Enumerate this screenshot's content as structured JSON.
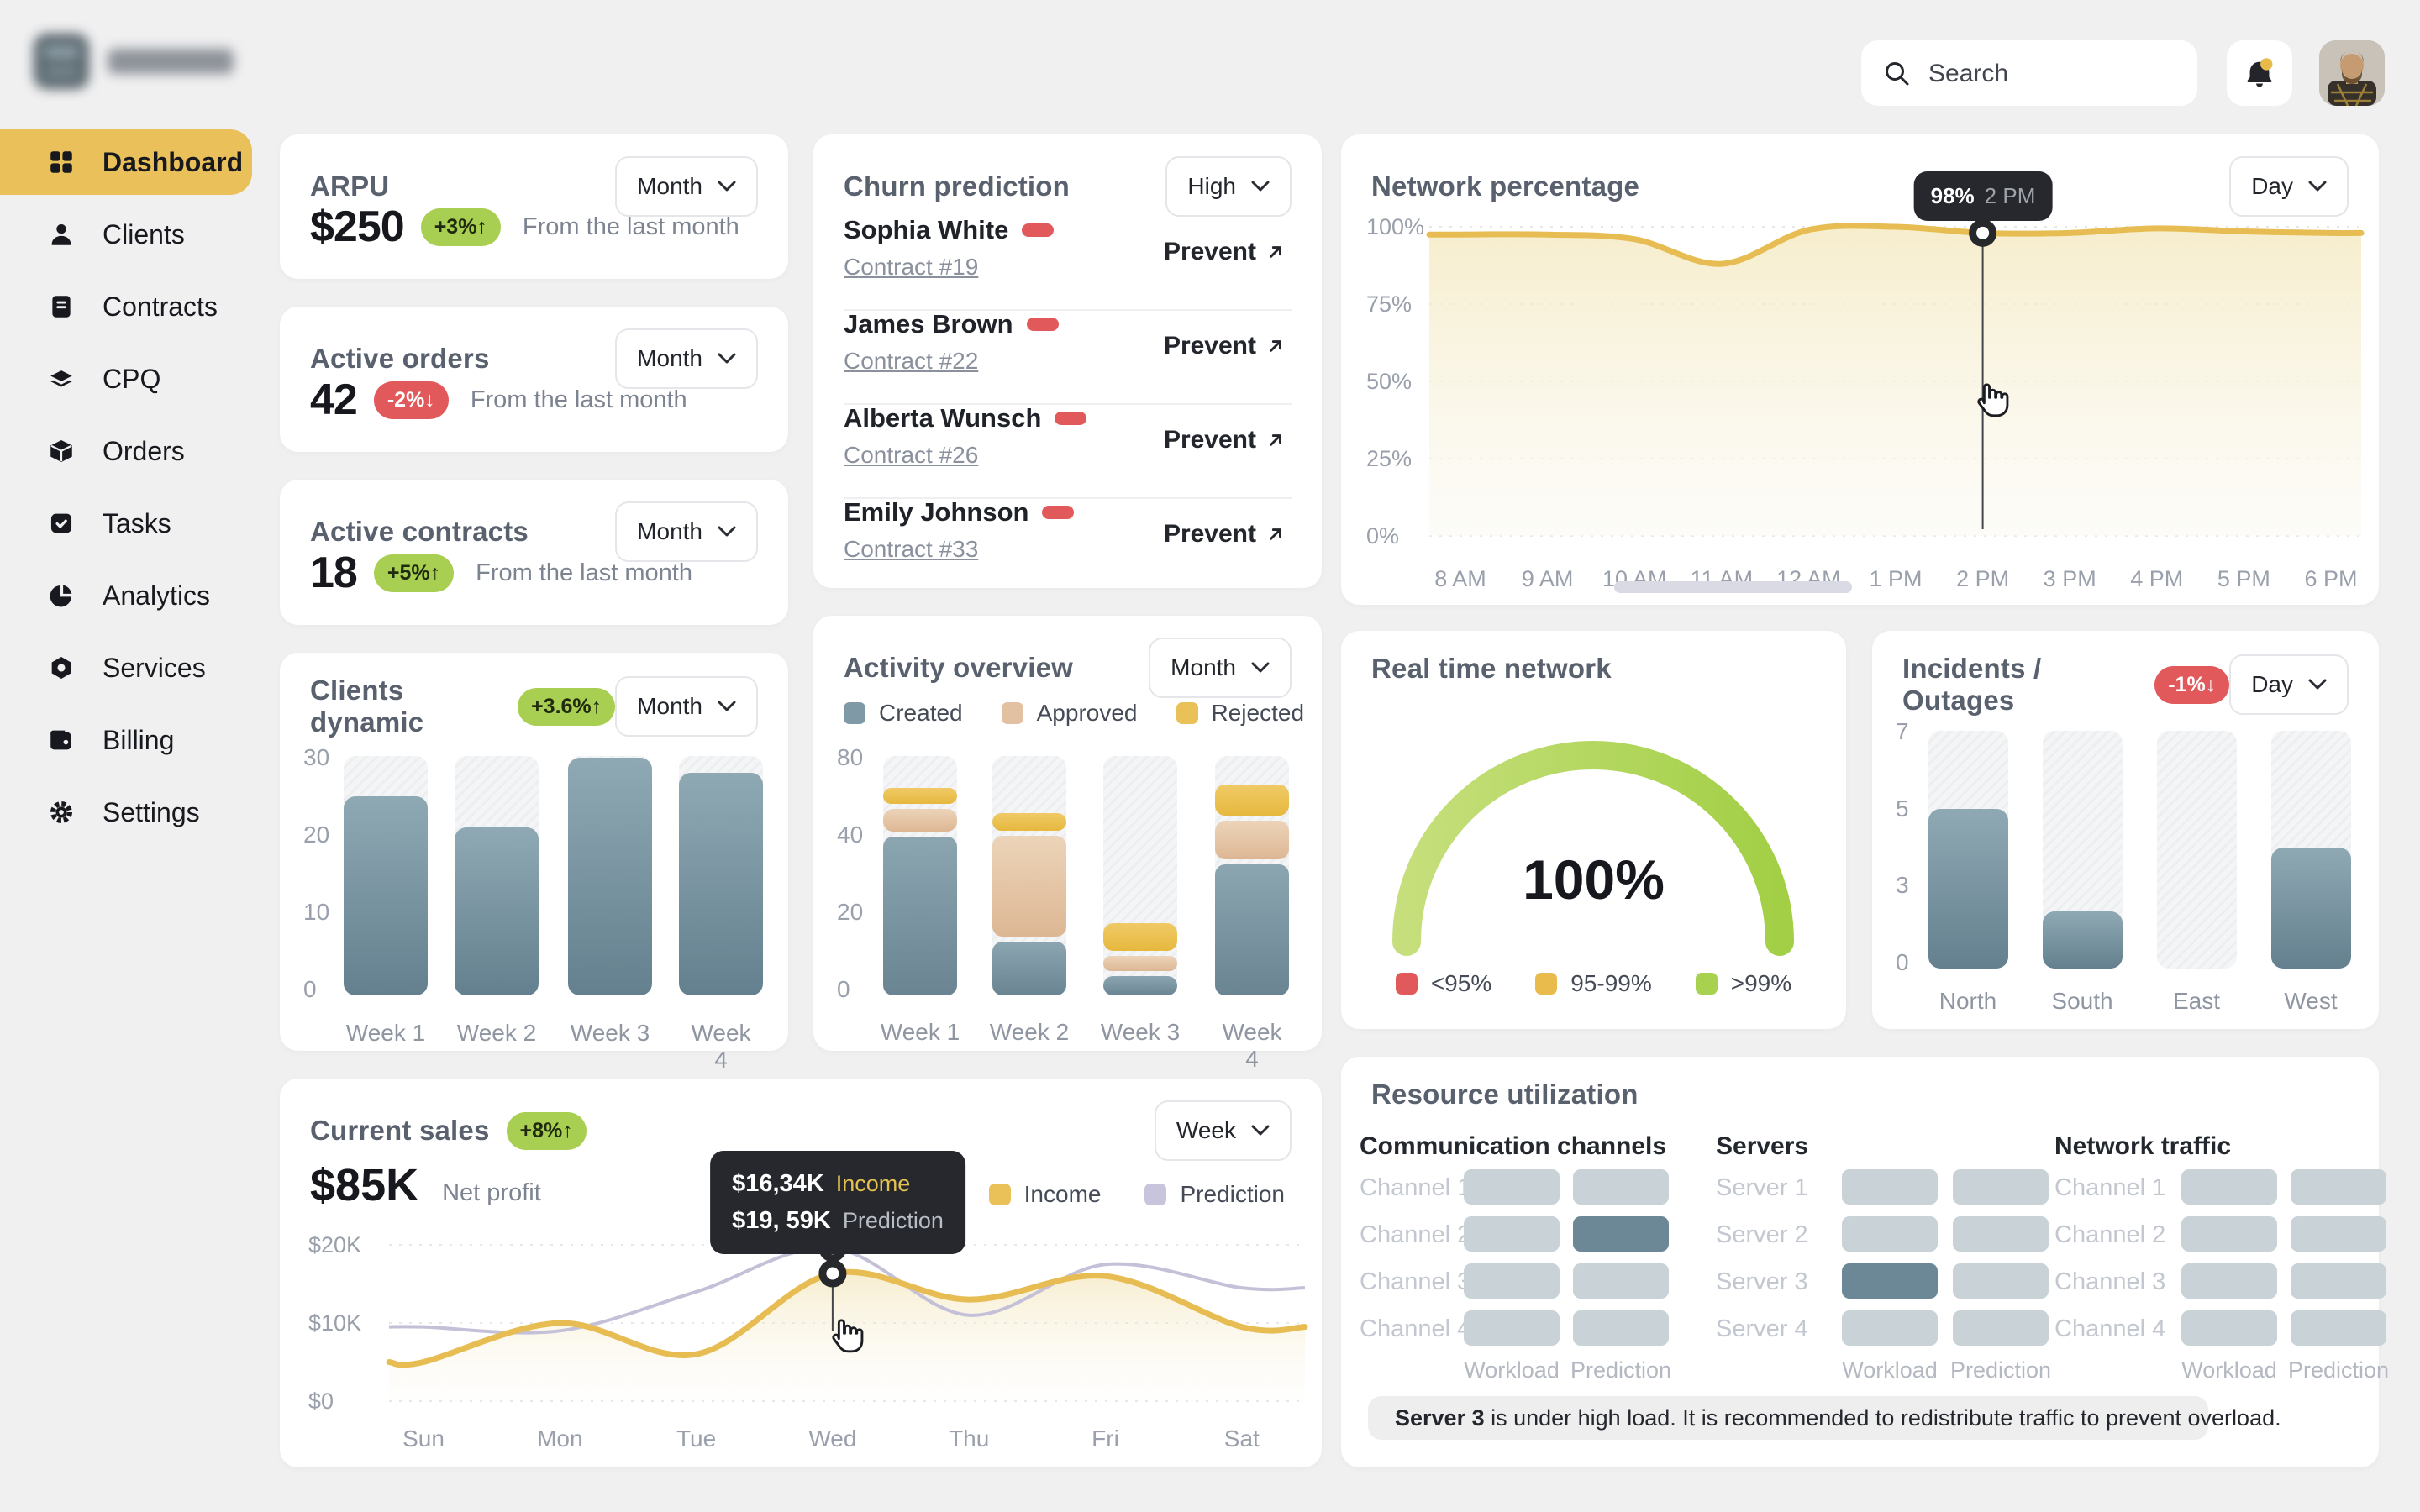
{
  "topbar": {
    "search_placeholder": "Search"
  },
  "sidebar": {
    "items": [
      {
        "label": "Dashboard",
        "icon": "dashboard-icon",
        "active": true
      },
      {
        "label": "Clients",
        "icon": "clients-icon",
        "active": false
      },
      {
        "label": "Contracts",
        "icon": "contracts-icon",
        "active": false
      },
      {
        "label": "CPQ",
        "icon": "cpq-icon",
        "active": false
      },
      {
        "label": "Orders",
        "icon": "orders-icon",
        "active": false
      },
      {
        "label": "Tasks",
        "icon": "tasks-icon",
        "active": false
      },
      {
        "label": "Analytics",
        "icon": "analytics-icon",
        "active": false
      },
      {
        "label": "Services",
        "icon": "services-icon",
        "active": false
      },
      {
        "label": "Billing",
        "icon": "billing-icon",
        "active": false
      },
      {
        "label": "Settings",
        "icon": "settings-icon",
        "active": false
      }
    ]
  },
  "cards": {
    "arpu": {
      "title": "ARPU",
      "period": "Month",
      "value": "$250",
      "badge": "+3%↑",
      "badge_type": "green",
      "note": "From the last month"
    },
    "active_orders": {
      "title": "Active orders",
      "period": "Month",
      "value": "42",
      "badge": "-2%↓",
      "badge_type": "red",
      "note": "From the last month"
    },
    "active_contracts": {
      "title": "Active contracts",
      "period": "Month",
      "value": "18",
      "badge": "+5%↑",
      "badge_type": "green",
      "note": "From the last month"
    },
    "clients_dynamic": {
      "title": "Clients dynamic",
      "badge": "+3.6%↑",
      "badge_type": "green",
      "period": "Month"
    },
    "churn": {
      "title": "Churn prediction",
      "filter": "High",
      "action_label": "Prevent",
      "rows": [
        {
          "name": "Sophia White",
          "contract": "Contract #19"
        },
        {
          "name": "James Brown",
          "contract": "Contract #22"
        },
        {
          "name": "Alberta Wunsch",
          "contract": "Contract #26"
        },
        {
          "name": "Emily Johnson",
          "contract": "Contract #33"
        }
      ]
    },
    "activity": {
      "title": "Activity overview",
      "period": "Month"
    },
    "network": {
      "title": "Network percentage",
      "period": "Day",
      "tooltip": {
        "value": "98%",
        "time": "2 PM"
      }
    },
    "current_sales": {
      "title": "Current sales",
      "badge": "+8%↑",
      "badge_type": "green",
      "period": "Week",
      "value": "$85K",
      "value_label": "Net profit",
      "tooltip": {
        "rows": [
          {
            "value": "$16,34K",
            "label": "Income"
          },
          {
            "value": "$19, 59K",
            "label": "Prediction"
          }
        ]
      }
    },
    "realtime": {
      "title": "Real time network",
      "value": "100%",
      "legend": [
        {
          "label": "<95%",
          "color": "#e2595b"
        },
        {
          "label": "95-99%",
          "color": "#e9bb4c"
        },
        {
          "label": ">99%",
          "color": "#a8d14f"
        }
      ]
    },
    "incidents": {
      "title": "Incidents / Outages",
      "badge": "-1%↓",
      "badge_type": "red",
      "period": "Day"
    },
    "resource": {
      "title": "Resource utilization",
      "columns": [
        "Workload",
        "Prediction"
      ],
      "groups": [
        {
          "title": "Communication channels",
          "rows": [
            {
              "label": "Channel 1",
              "workload": "normal",
              "prediction": "normal"
            },
            {
              "label": "Channel 2",
              "workload": "normal",
              "prediction": "high"
            },
            {
              "label": "Channel 3",
              "workload": "normal",
              "prediction": "normal"
            },
            {
              "label": "Channel 4",
              "workload": "normal",
              "prediction": "normal"
            }
          ]
        },
        {
          "title": "Servers",
          "rows": [
            {
              "label": "Server 1",
              "workload": "normal",
              "prediction": "normal"
            },
            {
              "label": "Server 2",
              "workload": "normal",
              "prediction": "normal"
            },
            {
              "label": "Server 3",
              "workload": "high",
              "prediction": "normal"
            },
            {
              "label": "Server 4",
              "workload": "normal",
              "prediction": "normal"
            }
          ]
        },
        {
          "title": "Network traffic",
          "rows": [
            {
              "label": "Channel 1",
              "workload": "normal",
              "prediction": "normal"
            },
            {
              "label": "Channel 2",
              "workload": "normal",
              "prediction": "normal"
            },
            {
              "label": "Channel 3",
              "workload": "normal",
              "prediction": "normal"
            },
            {
              "label": "Channel 4",
              "workload": "normal",
              "prediction": "normal"
            }
          ]
        }
      ],
      "alert": {
        "bold": "Server 3",
        "text": " is under high load. It is recommended to redistribute traffic to prevent overload."
      }
    }
  },
  "chart_data": {
    "clients_dynamic": {
      "type": "bar",
      "categories": [
        "Week 1",
        "Week 2",
        "Week 3",
        "Week 4"
      ],
      "values": [
        25,
        21,
        30,
        28
      ],
      "yticks": [
        30,
        20,
        10,
        0
      ],
      "ylim": [
        0,
        30
      ]
    },
    "activity_overview": {
      "type": "bar",
      "stacked": true,
      "categories": [
        "Week 1",
        "Week 2",
        "Week 3",
        "Week 4"
      ],
      "series": [
        {
          "name": "Created",
          "color": "#7f99a6",
          "values": [
            42,
            14,
            5,
            34
          ]
        },
        {
          "name": "Approved",
          "color": "#e2c1a2",
          "values": [
            12,
            26,
            4,
            14
          ]
        },
        {
          "name": "Rejected",
          "color": "#eac158",
          "values": [
            8,
            9,
            7,
            16
          ]
        }
      ],
      "yticks": [
        80,
        40,
        20,
        0
      ],
      "ylim": [
        0,
        80
      ]
    },
    "network_percentage": {
      "type": "area",
      "x": [
        "8 AM",
        "9 AM",
        "10 AM",
        "11 AM",
        "12 AM",
        "1 PM",
        "2 PM",
        "3 PM",
        "4 PM",
        "5 PM",
        "6 PM"
      ],
      "values": [
        97.5,
        97.5,
        96,
        88,
        99,
        100,
        98,
        98,
        99.5,
        98.5,
        98
      ],
      "yticks": [
        "100%",
        "75%",
        "50%",
        "25%",
        "0%"
      ],
      "ylim": [
        0,
        100
      ],
      "highlight": {
        "x": "2 PM",
        "value": 98
      }
    },
    "current_sales": {
      "type": "line",
      "x": [
        "Sun",
        "Mon",
        "Tue",
        "Wed",
        "Thu",
        "Fri",
        "Sat"
      ],
      "series": [
        {
          "name": "Income",
          "color": "#eac158",
          "values": [
            5,
            10,
            6,
            16.34,
            13,
            16,
            9.5
          ]
        },
        {
          "name": "Prediction",
          "color": "#c7c4dc",
          "values": [
            9.5,
            9,
            14,
            19.59,
            11,
            17.5,
            14.5
          ]
        }
      ],
      "yticks": [
        "$20K",
        "$10K",
        "$0"
      ],
      "ylim_k": [
        0,
        20
      ],
      "highlight": {
        "x": "Wed",
        "income": 16.34,
        "prediction": 19.59
      }
    },
    "realtime_network": {
      "type": "gauge",
      "value": 100,
      "unit": "%"
    },
    "incidents_outages": {
      "type": "bar",
      "categories": [
        "North",
        "South",
        "East",
        "West"
      ],
      "values": [
        5,
        2,
        0,
        4
      ],
      "yticks": [
        7,
        5,
        3,
        0
      ],
      "ylim": [
        0,
        7
      ]
    }
  }
}
